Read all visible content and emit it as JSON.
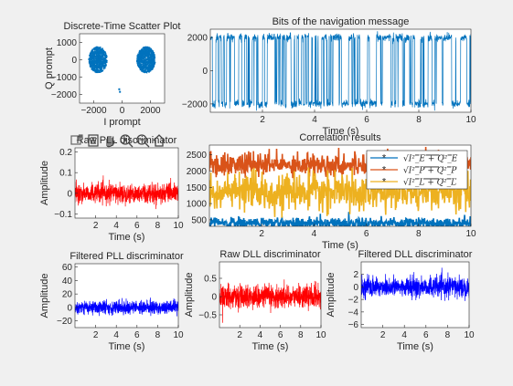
{
  "figure": {
    "background": "#f0f0f0",
    "axes_bg": "#ffffff",
    "axis_color": "#262626"
  },
  "toolbar": {
    "icons": [
      "export-icon",
      "brush-icon",
      "pan-icon",
      "zoom-in-icon",
      "zoom-out-icon",
      "home-icon"
    ]
  },
  "chart_data": [
    {
      "id": "scatter",
      "type": "scatter",
      "title": "Discrete-Time Scatter Plot",
      "xlabel": "I prompt",
      "ylabel": "Q prompt",
      "xlim": [
        -3000,
        3000
      ],
      "ylim": [
        -2500,
        1500
      ],
      "xticks": [
        -2000,
        0,
        2000
      ],
      "yticks": [
        -2000,
        -1000,
        0,
        1000
      ],
      "color": "#0072bd",
      "clusters": [
        {
          "cx": -1700,
          "cy": 0,
          "rx": 650,
          "ry": 750
        },
        {
          "cx": 1700,
          "cy": 0,
          "rx": 650,
          "ry": 750
        }
      ],
      "outliers": [
        {
          "x": -200,
          "y": -1700
        },
        {
          "x": -150,
          "y": -1850
        }
      ]
    },
    {
      "id": "navbits",
      "type": "line",
      "title": "Bits of the navigation message",
      "xlabel": "Time (s)",
      "ylabel": "",
      "xlim": [
        0,
        10
      ],
      "ylim": [
        -2500,
        2500
      ],
      "xticks": [
        2,
        4,
        6,
        8,
        10
      ],
      "yticks": [
        -2000,
        0,
        2000
      ],
      "color": "#0072bd",
      "levels": [
        -2000,
        2000
      ]
    },
    {
      "id": "rawpll",
      "type": "line",
      "title": "Raw PLL discriminator",
      "xlabel": "Time (s)",
      "ylabel": "Amplitude",
      "xlim": [
        0,
        10
      ],
      "ylim": [
        -0.12,
        0.22
      ],
      "xticks": [
        2,
        4,
        6,
        8,
        10
      ],
      "yticks": [
        -0.1,
        0,
        0.1,
        0.2
      ],
      "color": "#ff0000",
      "mean": 0.0,
      "spread": 0.045
    },
    {
      "id": "corr",
      "type": "line",
      "title": "Correlation results",
      "xlabel": "Time (s)",
      "ylabel": "",
      "xlim": [
        0,
        10
      ],
      "ylim": [
        300,
        2800
      ],
      "xticks": [
        2,
        4,
        6,
        8,
        10
      ],
      "yticks": [
        500,
        1000,
        1500,
        2000,
        2500
      ],
      "series": [
        {
          "name": "sqrt(I_E^2 + Q_E^2)",
          "label_main": "√",
          "label_sub": "I²_E + Q²_E",
          "color": "#0072bd",
          "mean": 400,
          "spread": 150
        },
        {
          "name": "sqrt(I_P^2 + Q_P^2)",
          "label_main": "√",
          "label_sub": "I²_P + Q²_P",
          "color": "#d95319",
          "mean": 2200,
          "spread": 300
        },
        {
          "name": "sqrt(I_L^2 + Q_L^2)",
          "label_main": "√",
          "label_sub": "I²_L + Q²_L",
          "color": "#edb120",
          "mean": 1350,
          "spread": 450
        }
      ]
    },
    {
      "id": "filtpll",
      "type": "line",
      "title": "Filtered PLL discriminator",
      "xlabel": "Time (s)",
      "ylabel": "Amplitude",
      "xlim": [
        0,
        10
      ],
      "ylim": [
        -30,
        65
      ],
      "xticks": [
        2,
        4,
        6,
        8,
        10
      ],
      "yticks": [
        -20,
        0,
        20,
        40,
        60
      ],
      "color": "#0000ff",
      "mean": 0,
      "spread": 10
    },
    {
      "id": "rawdll",
      "type": "line",
      "title": "Raw DLL discriminator",
      "xlabel": "Time (s)",
      "ylabel": "Amplitude",
      "xlim": [
        0,
        10
      ],
      "ylim": [
        -0.85,
        0.95
      ],
      "xticks": [
        2,
        4,
        6,
        8,
        10
      ],
      "yticks": [
        -0.5,
        0,
        0.5
      ],
      "color": "#ff0000",
      "mean": 0,
      "spread": 0.3
    },
    {
      "id": "filtdll",
      "type": "line",
      "title": "Filtered DLL discriminator",
      "xlabel": "Time (s)",
      "ylabel": "Amplitude",
      "xlim": [
        0,
        10
      ],
      "ylim": [
        -6.5,
        4
      ],
      "xticks": [
        2,
        4,
        6,
        8,
        10
      ],
      "yticks": [
        -6,
        -4,
        -2,
        0,
        2
      ],
      "color": "#0000ff",
      "mean": 0,
      "spread": 1.6
    }
  ]
}
